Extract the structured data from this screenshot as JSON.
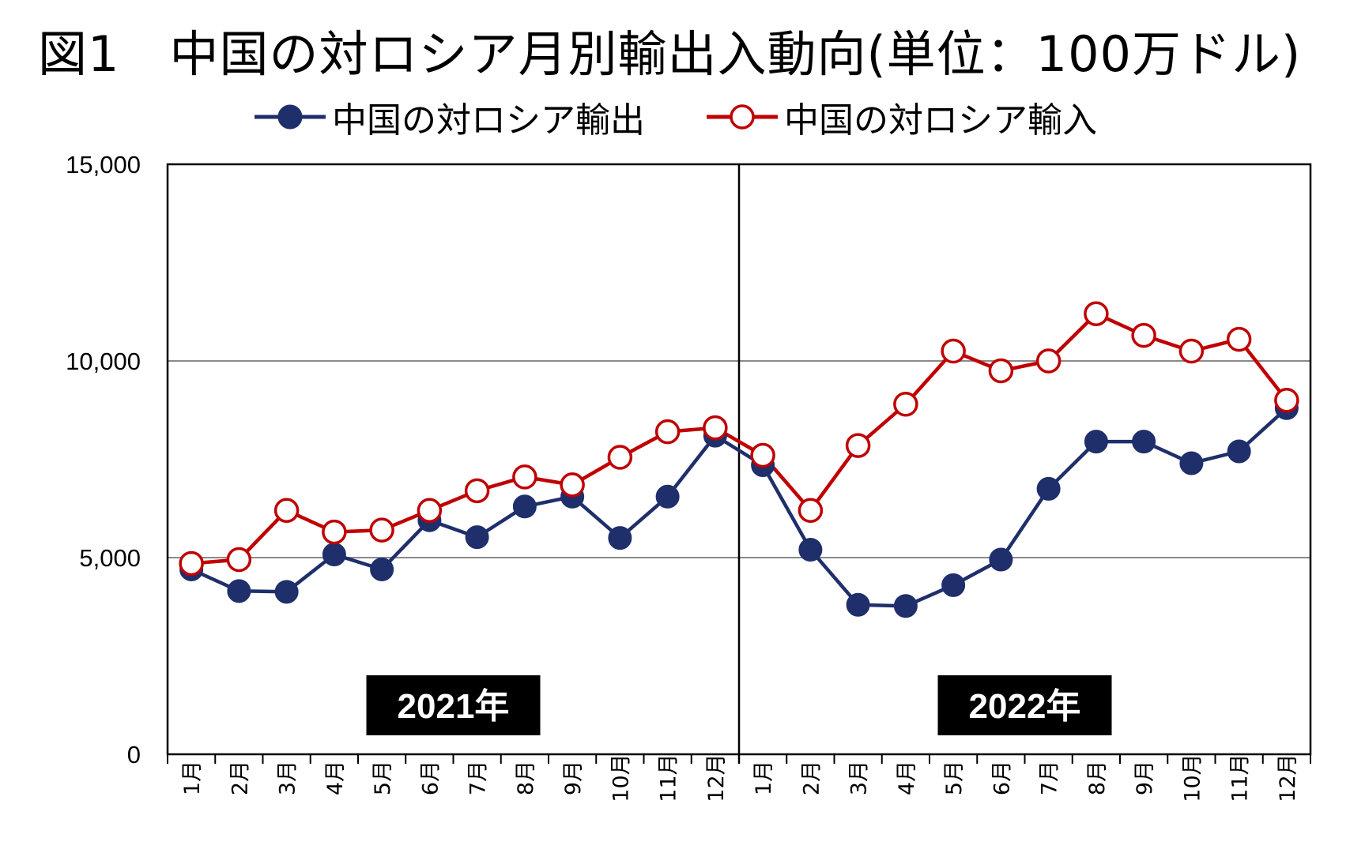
{
  "colors": {
    "export": "#1f2f6b",
    "import": "#c00000",
    "grid": "#8a8a8a",
    "axis": "#000000",
    "background": "#ffffff"
  },
  "chart_data": {
    "type": "line",
    "title": "図1　中国の対ロシア月別輸出入動向(単位：100万ドル)",
    "xlabel": "",
    "ylabel": "",
    "ylim": [
      0,
      15000
    ],
    "yticks": [
      0,
      5000,
      10000,
      15000
    ],
    "ytick_labels": [
      "0",
      "5,000",
      "10,000",
      "15,000"
    ],
    "categories": [
      "1月",
      "2月",
      "3月",
      "4月",
      "5月",
      "6月",
      "7月",
      "8月",
      "9月",
      "10月",
      "11月",
      "12月",
      "1月",
      "2月",
      "3月",
      "4月",
      "5月",
      "6月",
      "7月",
      "8月",
      "9月",
      "10月",
      "11月",
      "12月"
    ],
    "periods": [
      {
        "label": "2021年",
        "start": 0,
        "end": 11
      },
      {
        "label": "2022年",
        "start": 12,
        "end": 23
      }
    ],
    "grid": true,
    "legend_position": "top",
    "series": [
      {
        "name": "中国の対ロシア輸出",
        "marker": "filled-circle",
        "color": "#1f2f6b",
        "values": [
          4700,
          4150,
          4130,
          5080,
          4700,
          5950,
          5520,
          6300,
          6550,
          5500,
          6550,
          8100,
          7350,
          5200,
          3800,
          3770,
          4300,
          4950,
          6750,
          7950,
          7950,
          7400,
          7700,
          8800
        ]
      },
      {
        "name": "中国の対ロシア輸入",
        "marker": "hollow-circle",
        "color": "#c00000",
        "values": [
          4850,
          4950,
          6200,
          5650,
          5700,
          6200,
          6700,
          7050,
          6850,
          7550,
          8200,
          8300,
          7600,
          6200,
          7850,
          8900,
          10250,
          9750,
          10000,
          11200,
          10650,
          10250,
          10550,
          9000
        ]
      }
    ]
  }
}
